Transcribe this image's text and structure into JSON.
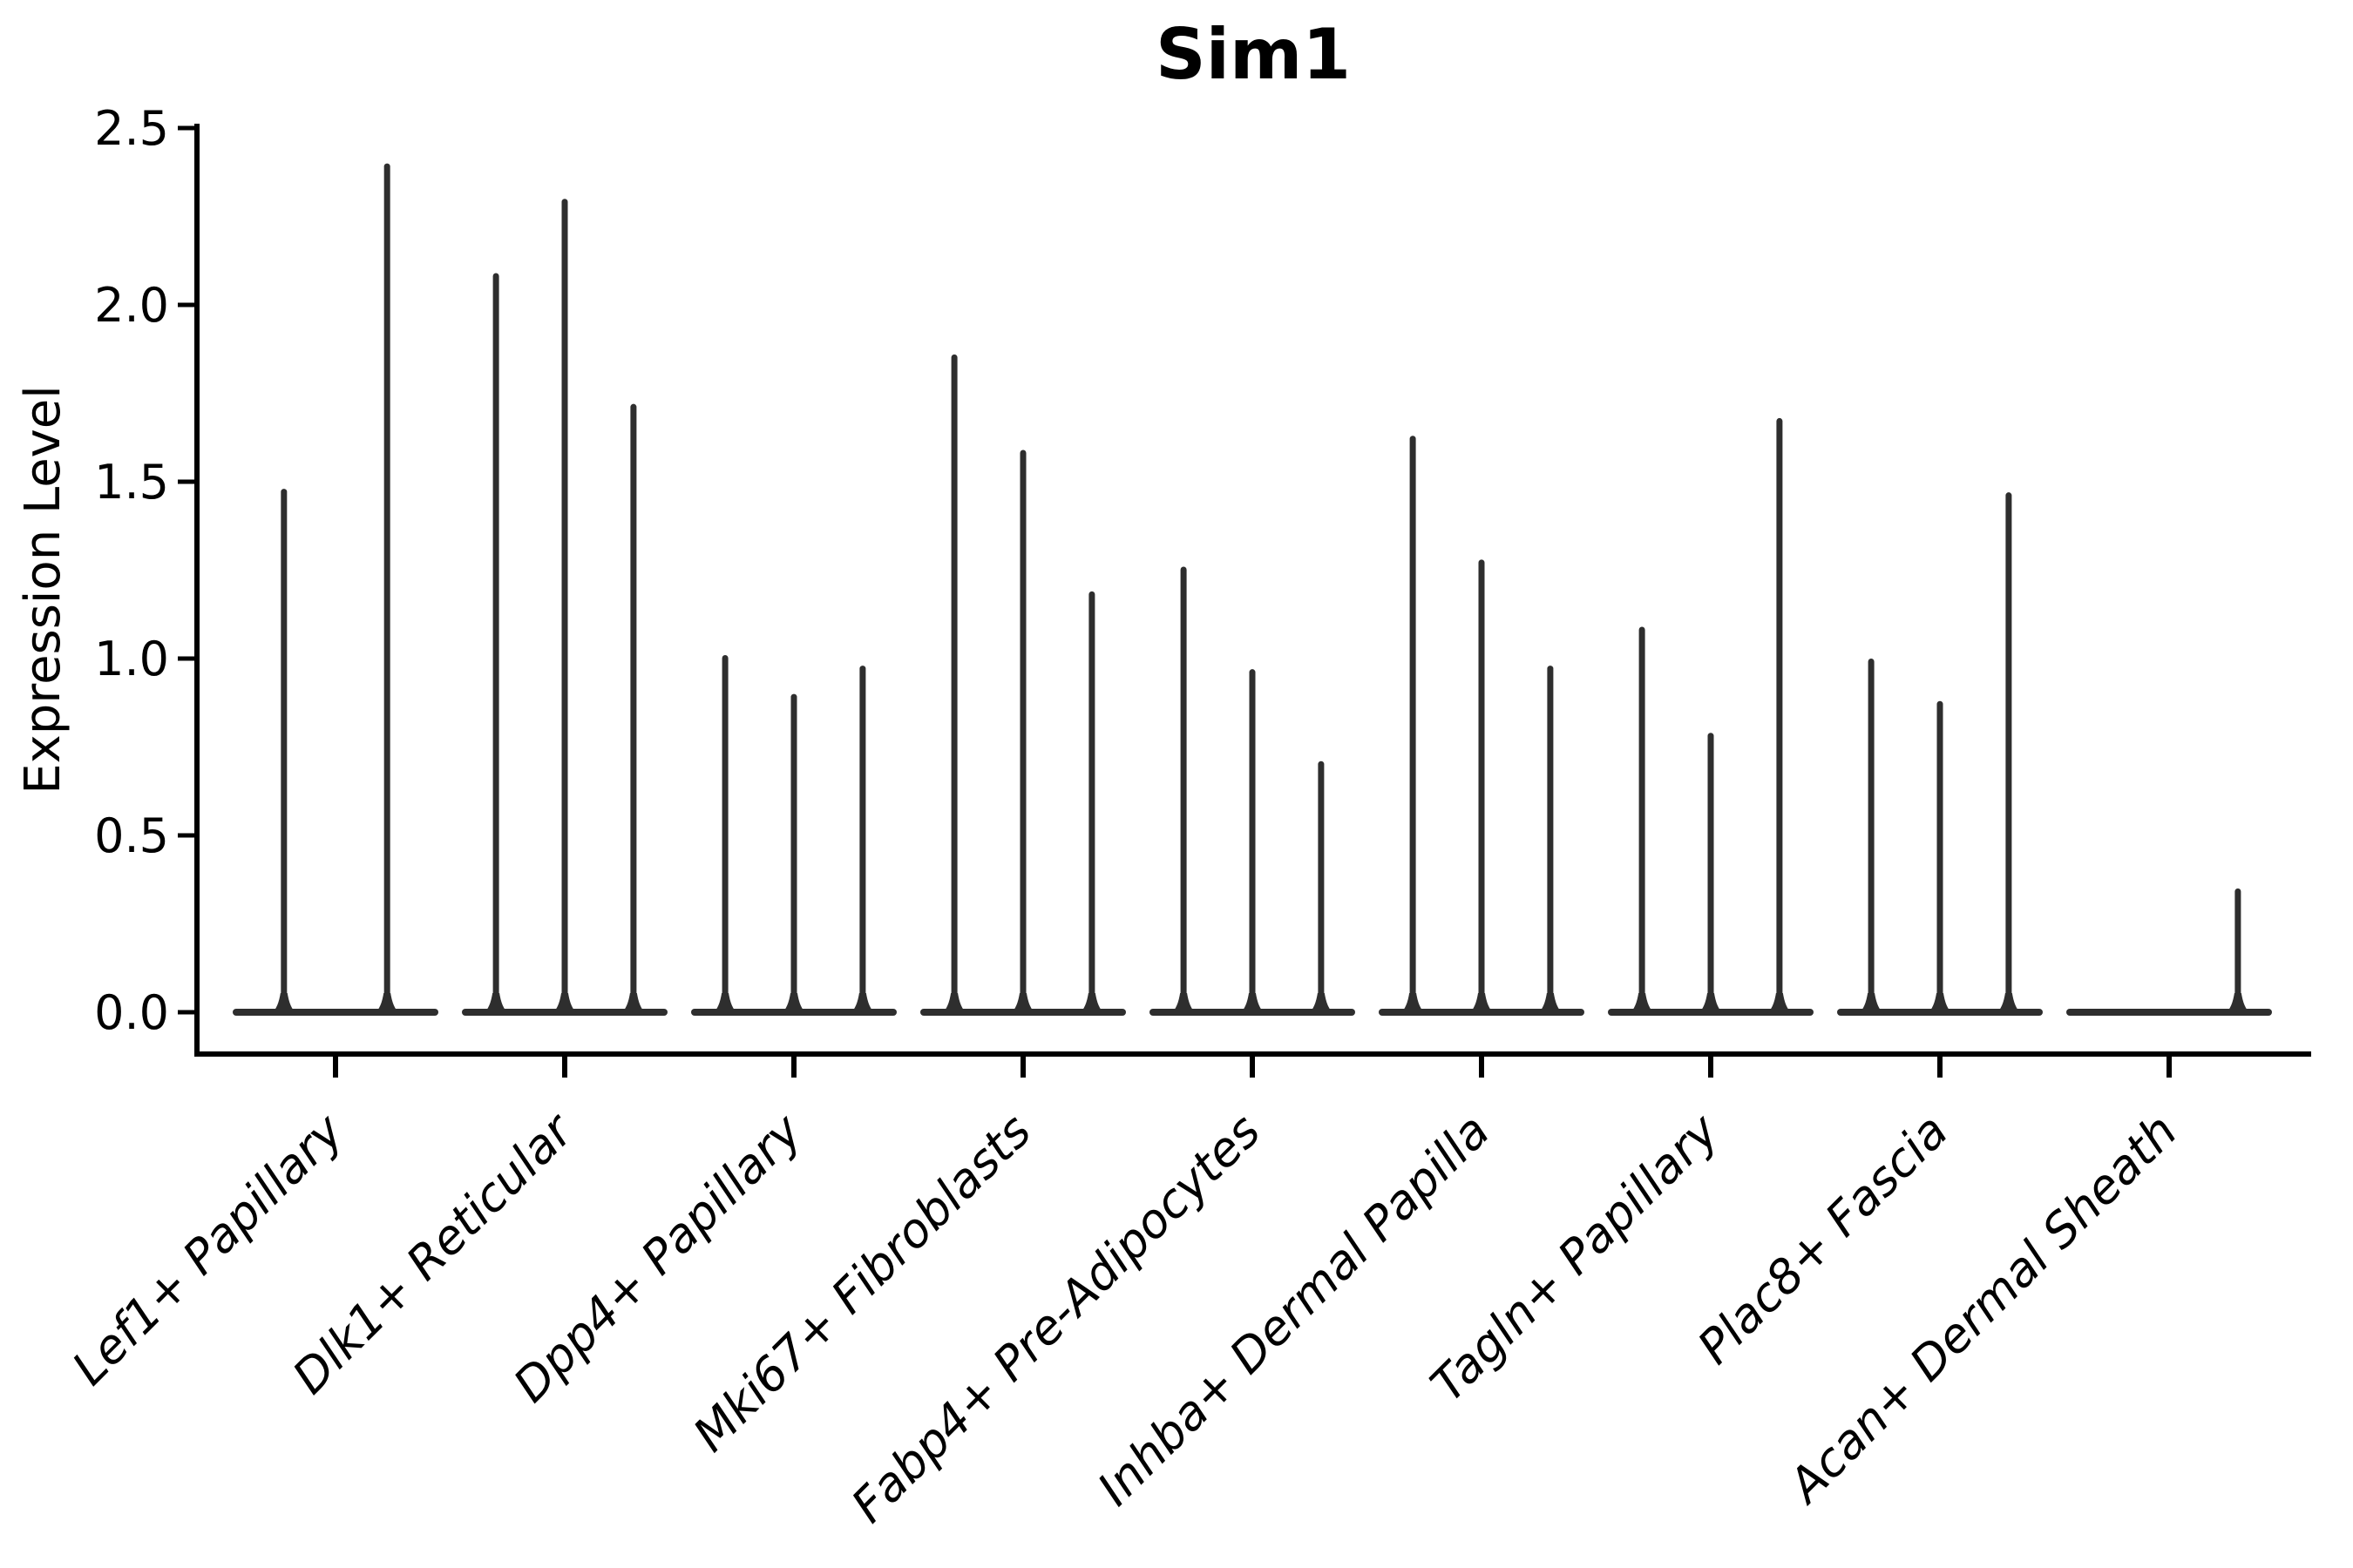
{
  "figure": {
    "title": "Sim1",
    "ylabel": "Expression Level",
    "background_color": "#ffffff",
    "violin_color": "#2e2e2e",
    "axis_color": "#000000"
  },
  "chart_data": {
    "type": "violin",
    "title": "Sim1",
    "xlabel": "",
    "ylabel": "Expression Level",
    "ylim": [
      0,
      2.5
    ],
    "grid": false,
    "legend_position": "none",
    "y_ticks": [
      "0.0",
      "0.5",
      "1.0",
      "1.5",
      "2.0",
      "2.5"
    ],
    "y_tick_values": [
      0,
      0.5,
      1.0,
      1.5,
      2.0,
      2.5
    ],
    "categories": [
      "Lef1+ Papillary",
      "Dlk1+ Reticular",
      "Dpp4+ Papillary",
      "Mki67+ Fibroblasts",
      "Fabp4+ Pre-Adipocytes",
      "Inhba+ Dermal Papilla",
      "Tagln+ Papillary",
      "Plac8+ Fascia",
      "Acan+ Dermal Sheath"
    ],
    "series": [
      {
        "category": "Lef1+ Papillary",
        "violin_max_expression": [
          1.48,
          2.4
        ]
      },
      {
        "category": "Dlk1+ Reticular",
        "violin_max_expression": [
          2.09,
          2.3,
          1.72
        ]
      },
      {
        "category": "Dpp4+ Papillary",
        "violin_max_expression": [
          1.01,
          0.9,
          0.98
        ]
      },
      {
        "category": "Mki67+ Fibroblasts",
        "violin_max_expression": [
          1.86,
          1.59,
          1.19
        ]
      },
      {
        "category": "Fabp4+ Pre-Adipocytes",
        "violin_max_expression": [
          1.26,
          0.97,
          0.71
        ]
      },
      {
        "category": "Inhba+ Dermal Papilla",
        "violin_max_expression": [
          1.63,
          1.28,
          0.98
        ]
      },
      {
        "category": "Tagln+ Papillary",
        "violin_max_expression": [
          1.09,
          0.79,
          1.68
        ]
      },
      {
        "category": "Plac8+ Fascia",
        "violin_max_expression": [
          1.0,
          0.88,
          1.47
        ]
      },
      {
        "category": "Acan+ Dermal Sheath",
        "violin_max_expression": [
          0,
          0,
          0.35
        ]
      }
    ],
    "description": "Violin plot; each category shows flat zero-density bases with thin spikes whose tops mark the maximum expression value per violin."
  }
}
